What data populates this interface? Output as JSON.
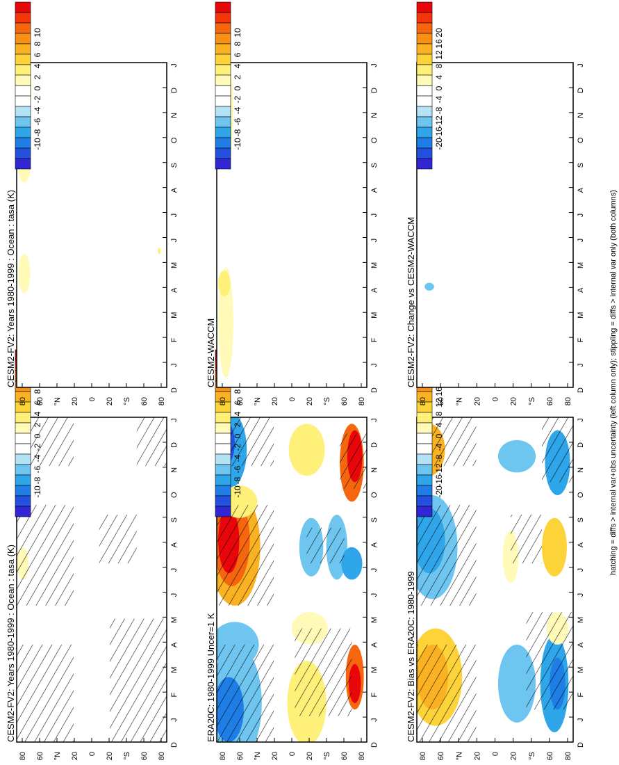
{
  "footer": "hatching = diffs > internal var+obs uncertainty (left column only); stippling = diffs > internal var only (both columns)",
  "month_labels": [
    "D",
    "J",
    "F",
    "M",
    "A",
    "M",
    "J",
    "J",
    "A",
    "S",
    "O",
    "N",
    "D",
    "J"
  ],
  "lat_labels": [
    "80",
    "60",
    "°N",
    "20",
    "0",
    "20",
    "°S",
    "60",
    "80"
  ],
  "colorbar_small": {
    "labels": [
      "10",
      "8",
      "6",
      "4",
      "2",
      "0",
      "-2",
      "-4",
      "-6",
      "-8",
      "-10"
    ],
    "colors": [
      "#e8060a",
      "#f2350b",
      "#f6660f",
      "#f99016",
      "#fbb222",
      "#fdd33a",
      "#fff07a",
      "#fffab8",
      "#ffffff",
      "#ffffff",
      "#b4e2f6",
      "#6ec5ef",
      "#2fa6ea",
      "#1f7ee6",
      "#2350df",
      "#3126d4"
    ]
  },
  "colorbar_large": {
    "labels": [
      "20",
      "16",
      "12",
      "8",
      "4",
      "0",
      "-4",
      "-8",
      "-12",
      "-16",
      "-20"
    ],
    "colors": [
      "#e8060a",
      "#f2350b",
      "#f6660f",
      "#f99016",
      "#fbb222",
      "#fdd33a",
      "#fff07a",
      "#fffab8",
      "#ffffff",
      "#ffffff",
      "#b4e2f6",
      "#6ec5ef",
      "#2fa6ea",
      "#1f7ee6",
      "#2350df",
      "#3126d4"
    ]
  },
  "panels": [
    {
      "title": "CESM2-FV2: Years 1980-1999 : Ocean : tasa (K)",
      "colorbar": "small",
      "pattern": "fv2_left",
      "hatched": true
    },
    {
      "title": "CESM2-FV2: Years 1980-1999 : Ocean : tasa (K)",
      "colorbar": "small",
      "pattern": "fv2_right",
      "hatched": false
    },
    {
      "title": "ERA20C: 1980-1999 Uncer=1 K",
      "colorbar": "small",
      "pattern": "era20c",
      "hatched": true
    },
    {
      "title": "CESM2-WACCM",
      "colorbar": "small",
      "pattern": "waccm",
      "hatched": false
    },
    {
      "title": "CESM2-FV2: Bias vs ERA20C: 1980-1999",
      "colorbar": "large",
      "pattern": "bias",
      "hatched": true
    },
    {
      "title": "CESM2-FV2: Change vs CESM2-WACCM",
      "colorbar": "large",
      "pattern": "change",
      "hatched": false
    }
  ]
}
